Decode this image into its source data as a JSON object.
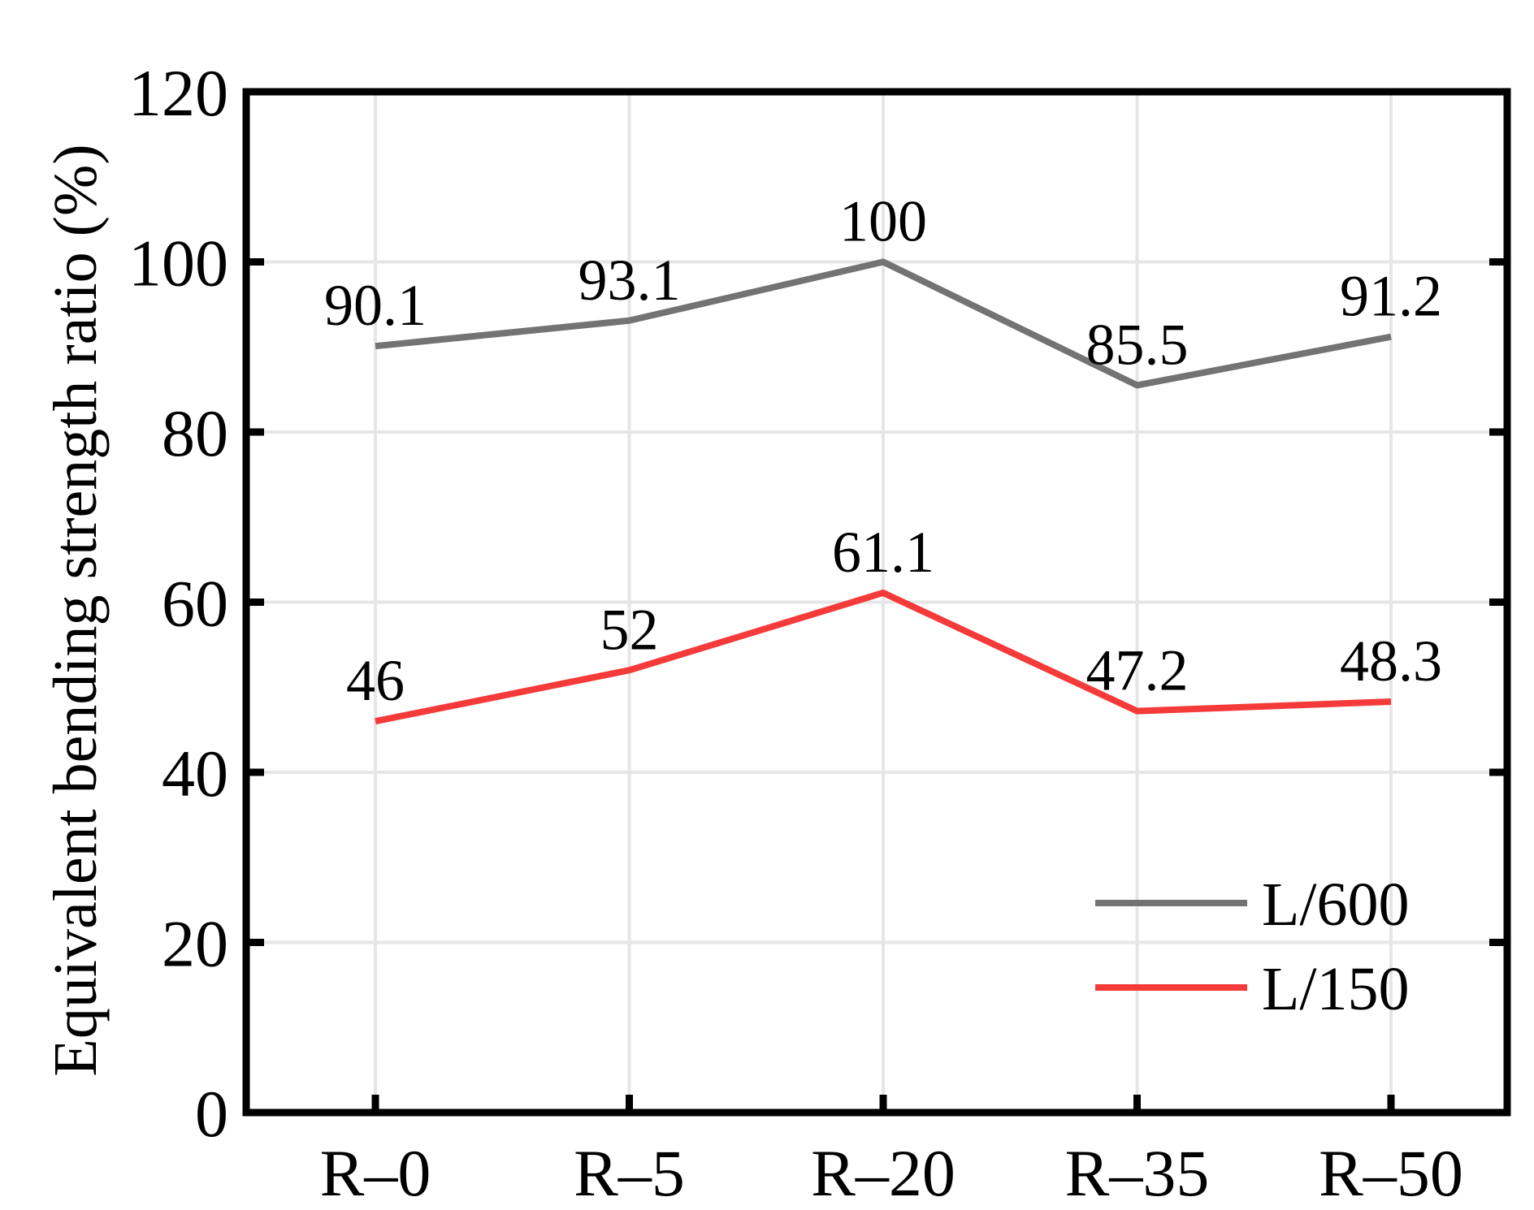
{
  "chart_data": {
    "type": "line",
    "categories": [
      "R–0",
      "R–5",
      "R–20",
      "R–35",
      "R–50"
    ],
    "series": [
      {
        "name": "L/600",
        "color": "#737373",
        "values": [
          90.1,
          93.1,
          100,
          85.5,
          91.2
        ],
        "labels": [
          "90.1",
          "93.1",
          "100",
          "85.5",
          "91.2"
        ]
      },
      {
        "name": "L/150",
        "color": "#f53a3a",
        "values": [
          46,
          52,
          61.1,
          47.2,
          48.3
        ],
        "labels": [
          "46",
          "52",
          "61.1",
          "47.2",
          "48.3"
        ]
      }
    ],
    "title": "",
    "xlabel": "",
    "ylabel": "Equivalent bending strength ratio (%)",
    "ylim": [
      0,
      120
    ],
    "yticks": [
      "0",
      "20",
      "40",
      "60",
      "80",
      "100",
      "120"
    ],
    "grid": true,
    "legend_position": "lower-right"
  }
}
